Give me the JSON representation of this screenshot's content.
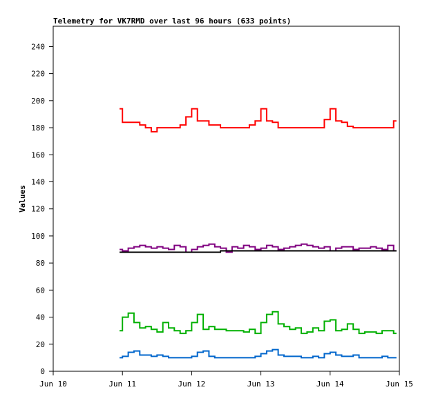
{
  "chart_data": {
    "type": "line",
    "title": "Telemetry for VK7RMD over last 96 hours (633 points)",
    "xlabel": "",
    "ylabel": "Values",
    "ylim": [
      0,
      255
    ],
    "yticks": [
      0,
      20,
      40,
      60,
      80,
      100,
      120,
      140,
      160,
      180,
      200,
      220,
      240
    ],
    "xlim": [
      "Jun 10 00:00",
      "Jun 15 00:00"
    ],
    "xticks": [
      "Jun 10",
      "Jun 11",
      "Jun 12",
      "Jun 13",
      "Jun 14",
      "Jun 15"
    ],
    "grid": false,
    "legend": "none",
    "x_start": "Jun 10 23:00",
    "x_step_hours": 2,
    "series": [
      {
        "color": "#ff0000",
        "values": [
          194,
          184,
          184,
          184,
          182,
          180,
          177,
          180,
          180,
          180,
          180,
          182,
          188,
          194,
          185,
          185,
          182,
          182,
          180,
          180,
          180,
          180,
          180,
          182,
          185,
          194,
          185,
          184,
          180,
          180,
          180,
          180,
          180,
          180,
          180,
          180,
          186,
          194,
          185,
          184,
          181,
          180,
          180,
          180,
          180,
          180,
          180,
          180,
          185
        ]
      },
      {
        "color": "#800080",
        "values": [
          90,
          89,
          91,
          92,
          93,
          92,
          91,
          92,
          91,
          90,
          93,
          92,
          88,
          90,
          92,
          93,
          94,
          92,
          91,
          88,
          92,
          91,
          93,
          92,
          90,
          91,
          93,
          92,
          90,
          91,
          92,
          93,
          94,
          93,
          92,
          91,
          92,
          89,
          91,
          92,
          92,
          90,
          91,
          91,
          92,
          91,
          90,
          93,
          89
        ]
      },
      {
        "color": "#000000",
        "values": [
          88,
          88,
          88,
          88,
          88,
          88,
          88,
          88,
          88,
          88,
          88,
          88,
          88,
          88,
          88,
          88,
          88,
          88,
          89,
          89,
          89,
          89,
          89,
          89,
          89,
          89,
          89,
          89,
          89,
          89,
          89,
          89,
          89,
          89,
          89,
          89,
          89,
          89,
          89,
          89,
          89,
          89,
          89,
          89,
          89,
          89,
          89,
          89,
          89
        ]
      },
      {
        "color": "#00b000",
        "values": [
          30,
          40,
          43,
          36,
          32,
          33,
          31,
          29,
          36,
          32,
          30,
          28,
          30,
          36,
          42,
          31,
          33,
          31,
          31,
          30,
          30,
          30,
          29,
          31,
          28,
          36,
          42,
          44,
          35,
          33,
          31,
          32,
          28,
          29,
          32,
          30,
          37,
          38,
          30,
          31,
          35,
          31,
          28,
          29,
          29,
          28,
          30,
          30,
          28
        ]
      },
      {
        "color": "#0066cc",
        "values": [
          10,
          11,
          14,
          15,
          12,
          12,
          11,
          12,
          11,
          10,
          10,
          10,
          10,
          11,
          14,
          15,
          11,
          10,
          10,
          10,
          10,
          10,
          10,
          10,
          11,
          13,
          15,
          16,
          12,
          11,
          11,
          11,
          10,
          10,
          11,
          10,
          13,
          14,
          12,
          11,
          11,
          12,
          10,
          10,
          10,
          10,
          11,
          10,
          10
        ]
      }
    ]
  }
}
